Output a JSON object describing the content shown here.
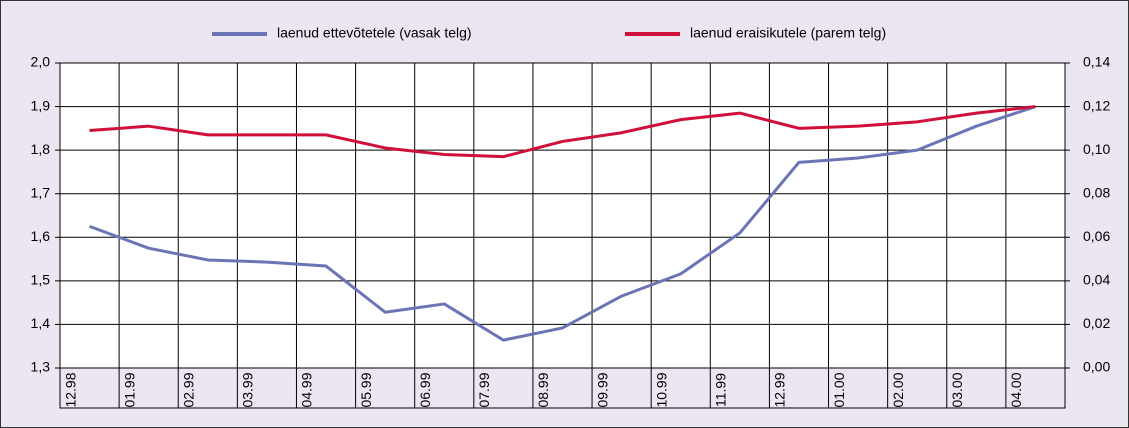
{
  "chart_data": {
    "type": "line",
    "categories": [
      "12.98",
      "01.99",
      "02.99",
      "03.99",
      "04.99",
      "05.99",
      "06.99",
      "07.99",
      "08.99",
      "09.99",
      "10.99",
      "11.99",
      "12.99",
      "01.00",
      "02.00",
      "03.00",
      "04.00"
    ],
    "series": [
      {
        "name": "laenud ettevõtetele (vasak telg)",
        "color": "#6b74b4",
        "values": [
          1.625,
          1.575,
          1.548,
          1.543,
          1.534,
          1.428,
          1.447,
          1.364,
          1.392,
          1.465,
          1.516,
          1.61,
          1.772,
          1.782,
          1.8,
          1.855,
          1.9
        ]
      },
      {
        "name": "laenud eraisikutele (parem telg)",
        "color": "#d0103a",
        "axis": "y2",
        "values": [
          0.109,
          0.111,
          0.107,
          0.107,
          0.107,
          0.101,
          0.098,
          0.097,
          0.104,
          0.108,
          0.114,
          0.117,
          0.11,
          0.111,
          0.113,
          0.117,
          0.12
        ]
      }
    ],
    "ylim": [
      1.3,
      2.0
    ],
    "yticks": [
      {
        "value": 1.3,
        "label": "1,3"
      },
      {
        "value": 1.4,
        "label": "1,4"
      },
      {
        "value": 1.5,
        "label": "1,5"
      },
      {
        "value": 1.6,
        "label": "1,6"
      },
      {
        "value": 1.7,
        "label": "1,7"
      },
      {
        "value": 1.8,
        "label": "1,8"
      },
      {
        "value": 1.9,
        "label": "1,9"
      },
      {
        "value": 2.0,
        "label": "2,0"
      }
    ],
    "y2lim": [
      0,
      0.14
    ],
    "y2ticks": [
      {
        "value": 0,
        "label": "0,00"
      },
      {
        "value": 0.02,
        "label": "0,02"
      },
      {
        "value": 0.04,
        "label": "0,04"
      },
      {
        "value": 0.06,
        "label": "0,06"
      },
      {
        "value": 0.08,
        "label": "0,08"
      },
      {
        "value": 0.1,
        "label": "0,10"
      },
      {
        "value": 0.12,
        "label": "0,12"
      },
      {
        "value": 0.14,
        "label": "0,14"
      }
    ],
    "grid": true
  }
}
